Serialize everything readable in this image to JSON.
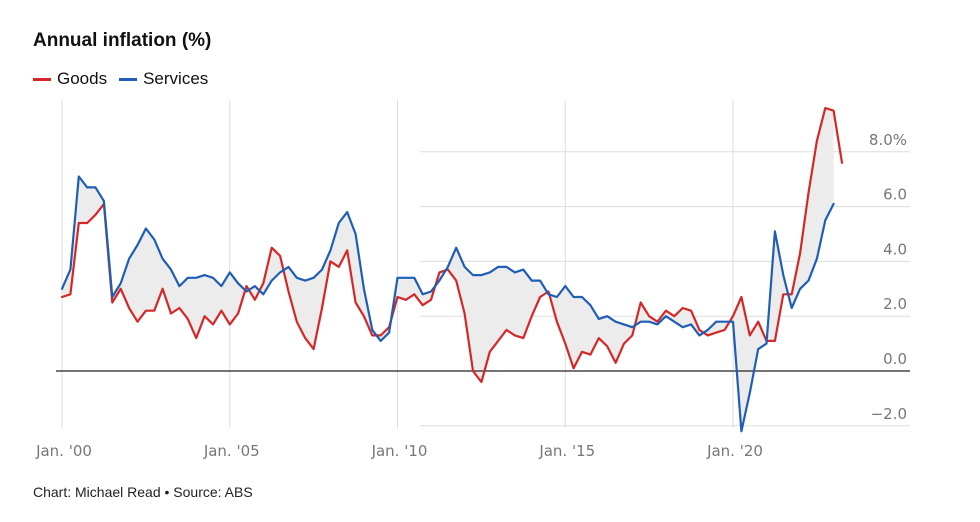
{
  "title": "Annual inflation (%)",
  "source": "Chart: Michael Read • Source: ABS",
  "colors": {
    "goods": "#d62728",
    "services": "#1f5eb5",
    "fill": "#ececec",
    "grid": "#dddddd",
    "zero": "#222222"
  },
  "chart_data": {
    "type": "line",
    "title": "Annual inflation (%)",
    "xlabel": "",
    "ylabel": "",
    "ylim": [
      -2.0,
      9.5
    ],
    "xlim": [
      2000.0,
      2025.25
    ],
    "y_ticks": [
      {
        "value": 8.0,
        "label": "8.0%"
      },
      {
        "value": 6.0,
        "label": "6.0"
      },
      {
        "value": 4.0,
        "label": "4.0"
      },
      {
        "value": 2.0,
        "label": "2.0"
      },
      {
        "value": 0.0,
        "label": "0.0"
      },
      {
        "value": -2.0,
        "label": "−2.0"
      }
    ],
    "x_ticks": [
      {
        "value": 2000,
        "label": "Jan. '00"
      },
      {
        "value": 2005,
        "label": "Jan. '05"
      },
      {
        "value": 2010,
        "label": "Jan. '10"
      },
      {
        "value": 2015,
        "label": "Jan. '15"
      },
      {
        "value": 2020,
        "label": "Jan. '20"
      }
    ],
    "grid": true,
    "legend_position": "top-left",
    "series": [
      {
        "name": "Goods",
        "color": "#d62728",
        "points": [
          [
            2000.0,
            2.7
          ],
          [
            2000.25,
            2.8
          ],
          [
            2000.5,
            5.4
          ],
          [
            2000.75,
            5.4
          ],
          [
            2001.0,
            5.7
          ],
          [
            2001.25,
            6.1
          ],
          [
            2001.5,
            2.5
          ],
          [
            2001.75,
            3.0
          ],
          [
            2002.0,
            2.3
          ],
          [
            2002.25,
            1.8
          ],
          [
            2002.5,
            2.2
          ],
          [
            2002.75,
            2.2
          ],
          [
            2003.0,
            3.0
          ],
          [
            2003.25,
            2.1
          ],
          [
            2003.5,
            2.3
          ],
          [
            2003.75,
            1.9
          ],
          [
            2004.0,
            1.2
          ],
          [
            2004.25,
            2.0
          ],
          [
            2004.5,
            1.7
          ],
          [
            2004.75,
            2.2
          ],
          [
            2005.0,
            1.7
          ],
          [
            2005.25,
            2.1
          ],
          [
            2005.5,
            3.1
          ],
          [
            2005.75,
            2.6
          ],
          [
            2006.0,
            3.2
          ],
          [
            2006.25,
            4.5
          ],
          [
            2006.5,
            4.2
          ],
          [
            2006.75,
            2.9
          ],
          [
            2007.0,
            1.8
          ],
          [
            2007.25,
            1.2
          ],
          [
            2007.5,
            0.8
          ],
          [
            2007.75,
            2.3
          ],
          [
            2008.0,
            4.0
          ],
          [
            2008.25,
            3.8
          ],
          [
            2008.5,
            4.4
          ],
          [
            2008.75,
            2.5
          ],
          [
            2009.0,
            2.0
          ],
          [
            2009.25,
            1.3
          ],
          [
            2009.5,
            1.3
          ],
          [
            2009.75,
            1.6
          ],
          [
            2010.0,
            2.7
          ],
          [
            2010.25,
            2.6
          ],
          [
            2010.5,
            2.8
          ],
          [
            2010.75,
            2.4
          ],
          [
            2011.0,
            2.6
          ],
          [
            2011.25,
            3.6
          ],
          [
            2011.5,
            3.7
          ],
          [
            2011.75,
            3.3
          ],
          [
            2012.0,
            2.1
          ],
          [
            2012.25,
            0.0
          ],
          [
            2012.5,
            -0.4
          ],
          [
            2012.75,
            0.7
          ],
          [
            2013.0,
            1.1
          ],
          [
            2013.25,
            1.5
          ],
          [
            2013.5,
            1.3
          ],
          [
            2013.75,
            1.2
          ],
          [
            2014.0,
            2.0
          ],
          [
            2014.25,
            2.7
          ],
          [
            2014.5,
            2.9
          ],
          [
            2014.75,
            1.8
          ],
          [
            2015.0,
            1.0
          ],
          [
            2015.25,
            0.1
          ],
          [
            2015.5,
            0.7
          ],
          [
            2015.75,
            0.6
          ],
          [
            2016.0,
            1.2
          ],
          [
            2016.25,
            0.9
          ],
          [
            2016.5,
            0.3
          ],
          [
            2016.75,
            1.0
          ],
          [
            2017.0,
            1.3
          ],
          [
            2017.25,
            2.5
          ],
          [
            2017.5,
            2.0
          ],
          [
            2017.75,
            1.8
          ],
          [
            2018.0,
            2.2
          ],
          [
            2018.25,
            2.0
          ],
          [
            2018.5,
            2.3
          ],
          [
            2018.75,
            2.2
          ],
          [
            2019.0,
            1.5
          ],
          [
            2019.25,
            1.3
          ],
          [
            2019.5,
            1.4
          ],
          [
            2019.75,
            1.5
          ],
          [
            2020.0,
            2.0
          ],
          [
            2020.25,
            2.7
          ],
          [
            2020.5,
            1.3
          ],
          [
            2020.75,
            1.8
          ],
          [
            2021.0,
            1.1
          ],
          [
            2021.25,
            1.1
          ],
          [
            2021.5,
            2.8
          ],
          [
            2021.75,
            2.8
          ],
          [
            2022.0,
            4.3
          ],
          [
            2022.25,
            6.5
          ],
          [
            2022.5,
            8.4
          ],
          [
            2022.75,
            9.6
          ],
          [
            2023.0,
            9.5
          ],
          [
            2023.25,
            7.6
          ]
        ]
      },
      {
        "name": "Services",
        "color": "#1f5eb5",
        "points": [
          [
            2000.0,
            3.0
          ],
          [
            2000.25,
            3.7
          ],
          [
            2000.5,
            7.1
          ],
          [
            2000.75,
            6.7
          ],
          [
            2001.0,
            6.7
          ],
          [
            2001.25,
            6.2
          ],
          [
            2001.5,
            2.7
          ],
          [
            2001.75,
            3.2
          ],
          [
            2002.0,
            4.1
          ],
          [
            2002.25,
            4.6
          ],
          [
            2002.5,
            5.2
          ],
          [
            2002.75,
            4.8
          ],
          [
            2003.0,
            4.1
          ],
          [
            2003.25,
            3.7
          ],
          [
            2003.5,
            3.1
          ],
          [
            2003.75,
            3.4
          ],
          [
            2004.0,
            3.4
          ],
          [
            2004.25,
            3.5
          ],
          [
            2004.5,
            3.4
          ],
          [
            2004.75,
            3.1
          ],
          [
            2005.0,
            3.6
          ],
          [
            2005.25,
            3.2
          ],
          [
            2005.5,
            2.9
          ],
          [
            2005.75,
            3.1
          ],
          [
            2006.0,
            2.8
          ],
          [
            2006.25,
            3.3
          ],
          [
            2006.5,
            3.6
          ],
          [
            2006.75,
            3.8
          ],
          [
            2007.0,
            3.4
          ],
          [
            2007.25,
            3.3
          ],
          [
            2007.5,
            3.4
          ],
          [
            2007.75,
            3.7
          ],
          [
            2008.0,
            4.4
          ],
          [
            2008.25,
            5.4
          ],
          [
            2008.5,
            5.8
          ],
          [
            2008.75,
            5.0
          ],
          [
            2009.0,
            3.0
          ],
          [
            2009.25,
            1.5
          ],
          [
            2009.5,
            1.1
          ],
          [
            2009.75,
            1.4
          ],
          [
            2010.0,
            3.4
          ],
          [
            2010.25,
            3.4
          ],
          [
            2010.5,
            3.4
          ],
          [
            2010.75,
            2.8
          ],
          [
            2011.0,
            2.9
          ],
          [
            2011.25,
            3.3
          ],
          [
            2011.5,
            3.8
          ],
          [
            2011.75,
            4.5
          ],
          [
            2012.0,
            3.8
          ],
          [
            2012.25,
            3.5
          ],
          [
            2012.5,
            3.5
          ],
          [
            2012.75,
            3.6
          ],
          [
            2013.0,
            3.8
          ],
          [
            2013.25,
            3.8
          ],
          [
            2013.5,
            3.6
          ],
          [
            2013.75,
            3.7
          ],
          [
            2014.0,
            3.3
          ],
          [
            2014.25,
            3.3
          ],
          [
            2014.5,
            2.8
          ],
          [
            2014.75,
            2.7
          ],
          [
            2015.0,
            3.1
          ],
          [
            2015.25,
            2.7
          ],
          [
            2015.5,
            2.7
          ],
          [
            2015.75,
            2.4
          ],
          [
            2016.0,
            1.9
          ],
          [
            2016.25,
            2.0
          ],
          [
            2016.5,
            1.8
          ],
          [
            2016.75,
            1.7
          ],
          [
            2017.0,
            1.6
          ],
          [
            2017.25,
            1.8
          ],
          [
            2017.5,
            1.8
          ],
          [
            2017.75,
            1.7
          ],
          [
            2018.0,
            2.0
          ],
          [
            2018.25,
            1.8
          ],
          [
            2018.5,
            1.6
          ],
          [
            2018.75,
            1.7
          ],
          [
            2019.0,
            1.3
          ],
          [
            2019.25,
            1.5
          ],
          [
            2019.5,
            1.8
          ],
          [
            2019.75,
            1.8
          ],
          [
            2020.0,
            1.8
          ],
          [
            2020.25,
            -2.2
          ],
          [
            2020.5,
            -0.8
          ],
          [
            2020.75,
            0.8
          ],
          [
            2021.0,
            1.0
          ],
          [
            2021.25,
            5.1
          ],
          [
            2021.5,
            3.5
          ],
          [
            2021.75,
            2.3
          ],
          [
            2022.0,
            3.0
          ],
          [
            2022.25,
            3.3
          ],
          [
            2022.5,
            4.1
          ],
          [
            2022.75,
            5.5
          ],
          [
            2023.0,
            6.1
          ]
        ]
      }
    ]
  }
}
